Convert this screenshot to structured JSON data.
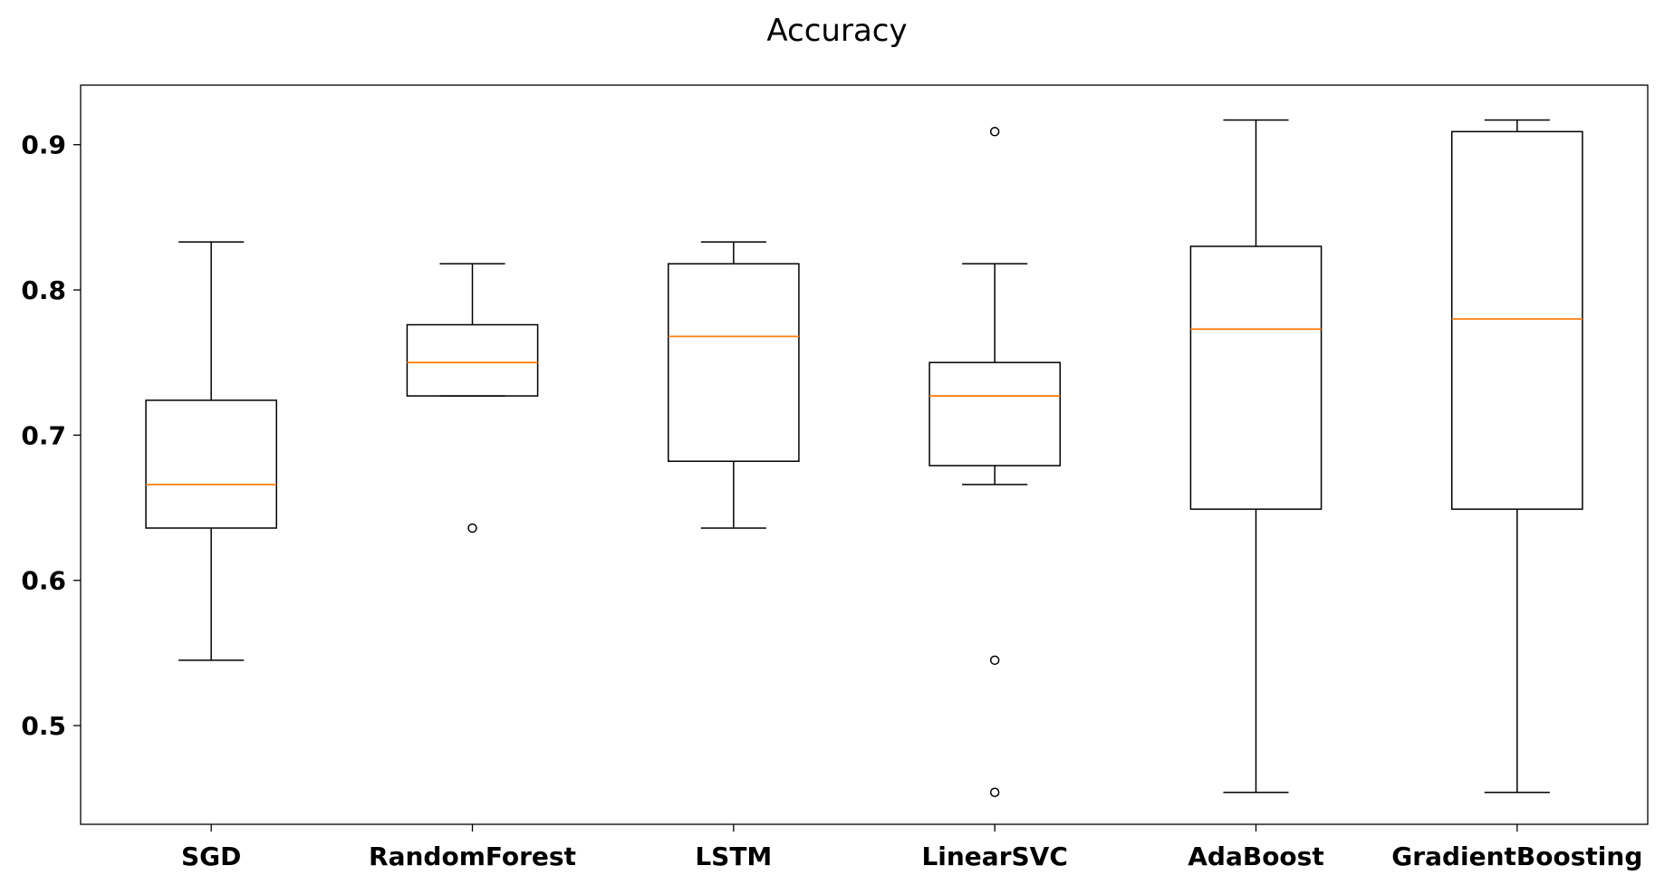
{
  "chart_data": {
    "type": "boxplot",
    "title": "Accuracy",
    "xlabel": "",
    "ylabel": "",
    "ylim": [
      0.432,
      0.941
    ],
    "yticks": [
      "0.5",
      "0.6",
      "0.7",
      "0.8",
      "0.9"
    ],
    "grid": false,
    "colors": {
      "box": "#000000",
      "median": "#ff7f0e",
      "background": "#ffffff"
    },
    "categories": [
      "SGD",
      "RandomForest",
      "LSTM",
      "LinearSVC",
      "AdaBoost",
      "GradientBoosting"
    ],
    "boxes": [
      {
        "category": "SGD",
        "whisker_low": 0.545,
        "q1": 0.636,
        "median": 0.666,
        "q3": 0.724,
        "whisker_high": 0.833,
        "outliers": []
      },
      {
        "category": "RandomForest",
        "whisker_low": 0.727,
        "q1": 0.727,
        "median": 0.75,
        "q3": 0.776,
        "whisker_high": 0.818,
        "outliers": [
          0.636
        ]
      },
      {
        "category": "LSTM",
        "whisker_low": 0.636,
        "q1": 0.682,
        "median": 0.768,
        "q3": 0.818,
        "whisker_high": 0.833,
        "outliers": []
      },
      {
        "category": "LinearSVC",
        "whisker_low": 0.666,
        "q1": 0.679,
        "median": 0.727,
        "q3": 0.75,
        "whisker_high": 0.818,
        "outliers": [
          0.909,
          0.545,
          0.454
        ]
      },
      {
        "category": "AdaBoost",
        "whisker_low": 0.454,
        "q1": 0.649,
        "median": 0.773,
        "q3": 0.83,
        "whisker_high": 0.917,
        "outliers": []
      },
      {
        "category": "GradientBoosting",
        "whisker_low": 0.454,
        "q1": 0.649,
        "median": 0.78,
        "q3": 0.909,
        "whisker_high": 0.917,
        "outliers": []
      }
    ]
  }
}
